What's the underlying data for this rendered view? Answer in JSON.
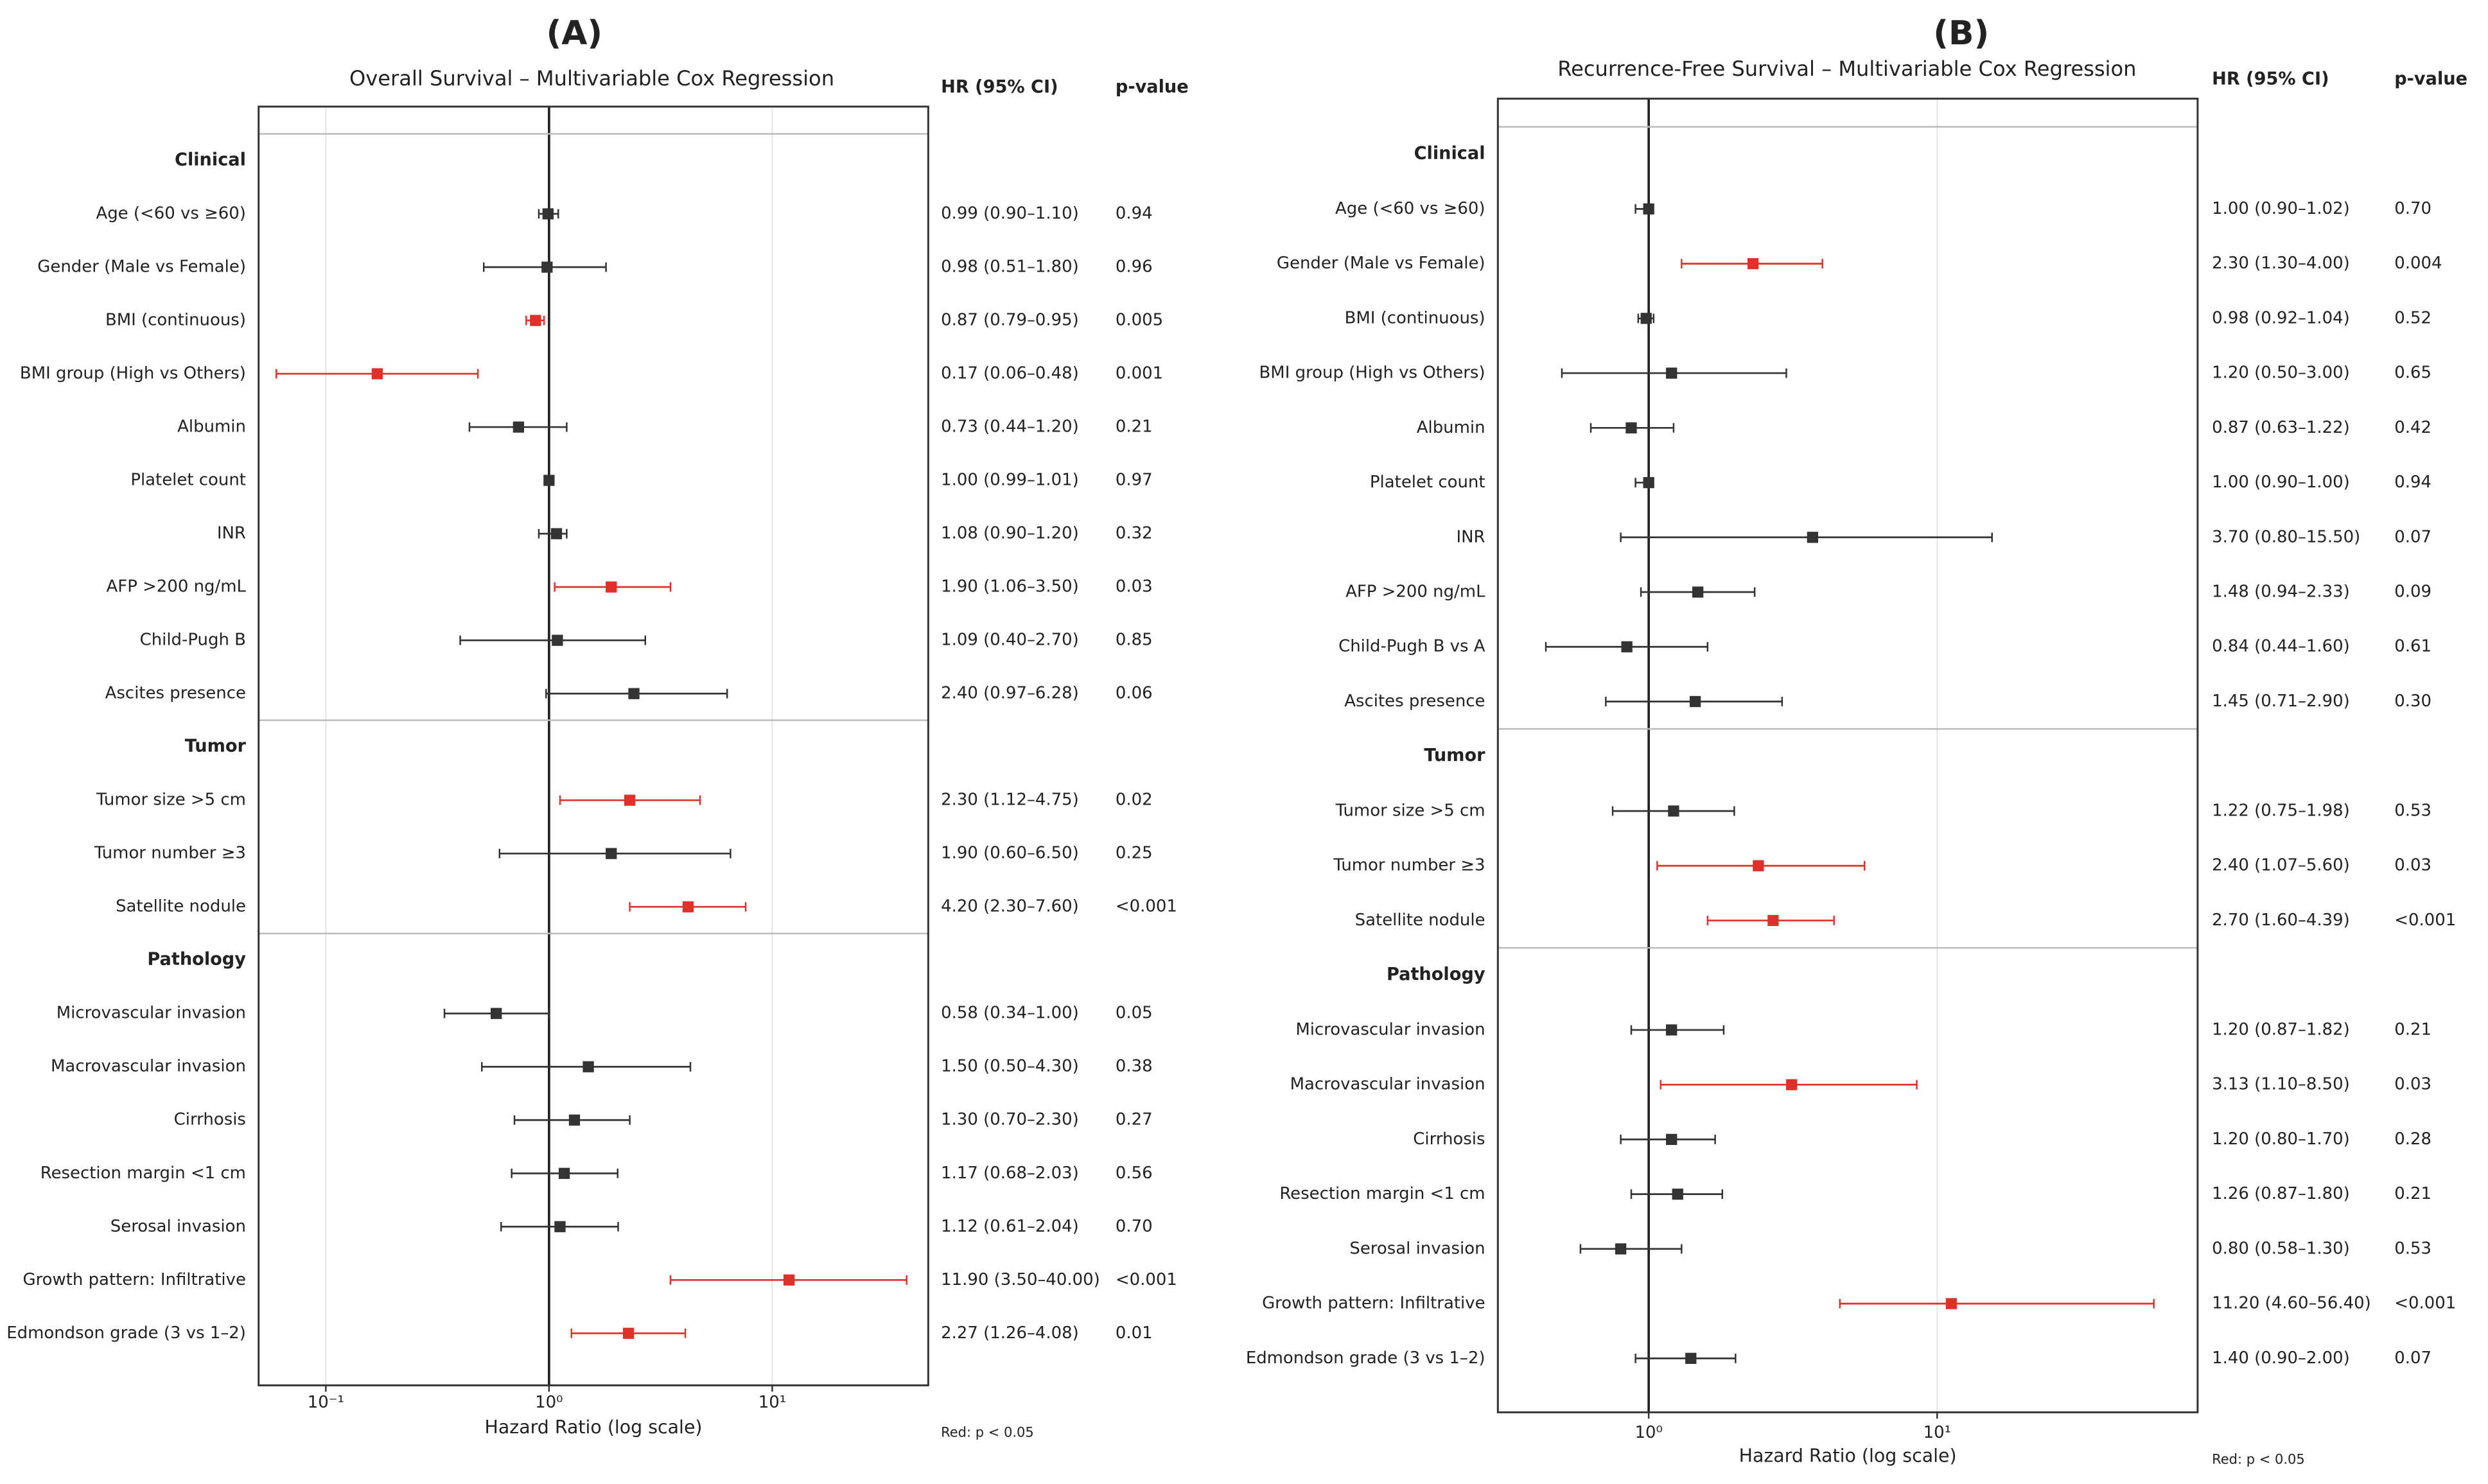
{
  "chart_data": [
    {
      "type": "forest",
      "panel": "(A)",
      "title": "Overall Survival – Multivariable Cox Regression",
      "ci_header": "HR (95% CI)",
      "p_header": "p-value",
      "xlabel": "Hazard Ratio (log scale)",
      "note": "Red: p < 0.05",
      "log_x": true,
      "xlim": [
        0.05,
        50
      ],
      "xticks": [
        {
          "value": 0.1,
          "label": "10⁻¹"
        },
        {
          "value": 1,
          "label": "10⁰"
        },
        {
          "value": 10,
          "label": "10¹"
        }
      ],
      "ref_line": 1,
      "grid": true,
      "color": "#333333",
      "highlight_color": "#e0302a",
      "sections": [
        {
          "label": "Clinical",
          "categories": [
            "Age (<60 vs ≥60)",
            "Gender (Male vs Female)",
            "BMI (continuous)",
            "BMI group (High vs Others)",
            "Albumin",
            "Platelet count",
            "INR",
            "AFP >200 ng/mL",
            "Child-Pugh B",
            "Ascites presence"
          ],
          "values": [
            0.99,
            0.98,
            0.87,
            0.17,
            0.73,
            1.0,
            1.08,
            1.9,
            1.09,
            2.4
          ],
          "lower": [
            0.9,
            0.51,
            0.79,
            0.06,
            0.44,
            0.99,
            0.9,
            1.06,
            0.4,
            0.97
          ],
          "upper": [
            1.1,
            1.8,
            0.95,
            0.48,
            1.2,
            1.01,
            1.2,
            3.5,
            2.7,
            6.28
          ],
          "ci_labels": [
            "0.99 (0.90–1.10)",
            "0.98 (0.51–1.80)",
            "0.87 (0.79–0.95)",
            "0.17 (0.06–0.48)",
            "0.73 (0.44–1.20)",
            "1.00 (0.99–1.01)",
            "1.08 (0.90–1.20)",
            "1.90 (1.06–3.50)",
            "1.09 (0.40–2.70)",
            "2.40 (0.97–6.28)"
          ],
          "p_labels": [
            "0.94",
            "0.96",
            "0.005",
            "0.001",
            "0.21",
            "0.97",
            "0.32",
            "0.03",
            "0.85",
            "0.06"
          ],
          "highlight": [
            false,
            false,
            true,
            true,
            false,
            false,
            false,
            true,
            false,
            false
          ]
        },
        {
          "label": "Tumor",
          "categories": [
            "Tumor size >5 cm",
            "Tumor number ≥3",
            "Satellite nodule"
          ],
          "values": [
            2.3,
            1.9,
            4.2
          ],
          "lower": [
            1.12,
            0.6,
            2.3
          ],
          "upper": [
            4.75,
            6.5,
            7.6
          ],
          "ci_labels": [
            "2.30 (1.12–4.75)",
            "1.90 (0.60–6.50)",
            "4.20 (2.30–7.60)"
          ],
          "p_labels": [
            "0.02",
            "0.25",
            "<0.001"
          ],
          "highlight": [
            true,
            false,
            true
          ]
        },
        {
          "label": "Pathology",
          "categories": [
            "Microvascular invasion",
            "Macrovascular invasion",
            "Cirrhosis",
            "Resection margin <1 cm",
            "Serosal invasion",
            "Growth pattern: Infiltrative",
            "Edmondson grade (3 vs 1–2)"
          ],
          "values": [
            0.58,
            1.5,
            1.3,
            1.17,
            1.12,
            11.9,
            2.27
          ],
          "lower": [
            0.34,
            0.5,
            0.7,
            0.68,
            0.61,
            3.5,
            1.26
          ],
          "upper": [
            1.0,
            4.3,
            2.3,
            2.03,
            2.04,
            40.0,
            4.08
          ],
          "ci_labels": [
            "0.58 (0.34–1.00)",
            "1.50 (0.50–4.30)",
            "1.30 (0.70–2.30)",
            "1.17 (0.68–2.03)",
            "1.12 (0.61–2.04)",
            "11.90 (3.50–40.00)",
            "2.27 (1.26–4.08)"
          ],
          "p_labels": [
            "0.05",
            "0.38",
            "0.27",
            "0.56",
            "0.70",
            "<0.001",
            "0.01"
          ],
          "highlight": [
            false,
            false,
            false,
            false,
            false,
            true,
            true
          ]
        }
      ]
    },
    {
      "type": "forest",
      "panel": "(B)",
      "title": "Recurrence-Free Survival – Multivariable Cox Regression",
      "ci_header": "HR (95% CI)",
      "p_header": "p-value",
      "xlabel": "Hazard Ratio (log scale)",
      "note": "Red: p < 0.05",
      "log_x": true,
      "xlim": [
        0.3,
        80
      ],
      "xticks": [
        {
          "value": 1,
          "label": "10⁰"
        },
        {
          "value": 10,
          "label": "10¹"
        }
      ],
      "ref_line": 1,
      "grid": true,
      "color": "#333333",
      "highlight_color": "#e0302a",
      "sections": [
        {
          "label": "Clinical",
          "categories": [
            "Age (<60 vs ≥60)",
            "Gender (Male vs Female)",
            "BMI (continuous)",
            "BMI group (High vs Others)",
            "Albumin",
            "Platelet count",
            "INR",
            "AFP >200 ng/mL",
            "Child-Pugh B vs A",
            "Ascites presence"
          ],
          "values": [
            1.0,
            2.3,
            0.98,
            1.2,
            0.87,
            1.0,
            3.7,
            1.48,
            0.84,
            1.45
          ],
          "lower": [
            0.9,
            1.3,
            0.92,
            0.5,
            0.63,
            0.9,
            0.8,
            0.94,
            0.44,
            0.71
          ],
          "upper": [
            1.02,
            4.0,
            1.04,
            3.0,
            1.22,
            1.0,
            15.5,
            2.33,
            1.6,
            2.9
          ],
          "ci_labels": [
            "1.00 (0.90–1.02)",
            "2.30 (1.30–4.00)",
            "0.98 (0.92–1.04)",
            "1.20 (0.50–3.00)",
            "0.87 (0.63–1.22)",
            "1.00 (0.90–1.00)",
            "3.70 (0.80–15.50)",
            "1.48 (0.94–2.33)",
            "0.84 (0.44–1.60)",
            "1.45 (0.71–2.90)"
          ],
          "p_labels": [
            "0.70",
            "0.004",
            "0.52",
            "0.65",
            "0.42",
            "0.94",
            "0.07",
            "0.09",
            "0.61",
            "0.30"
          ],
          "highlight": [
            false,
            true,
            false,
            false,
            false,
            false,
            false,
            false,
            false,
            false
          ]
        },
        {
          "label": "Tumor",
          "categories": [
            "Tumor size >5 cm",
            "Tumor number ≥3",
            "Satellite nodule"
          ],
          "values": [
            1.22,
            2.4,
            2.7
          ],
          "lower": [
            0.75,
            1.07,
            1.6
          ],
          "upper": [
            1.98,
            5.6,
            4.39
          ],
          "ci_labels": [
            "1.22 (0.75–1.98)",
            "2.40 (1.07–5.60)",
            "2.70 (1.60–4.39)"
          ],
          "p_labels": [
            "0.53",
            "0.03",
            "<0.001"
          ],
          "highlight": [
            false,
            true,
            true
          ]
        },
        {
          "label": "Pathology",
          "categories": [
            "Microvascular invasion",
            "Macrovascular invasion",
            "Cirrhosis",
            "Resection margin <1 cm",
            "Serosal invasion",
            "Growth pattern: Infiltrative",
            "Edmondson grade (3 vs 1–2)"
          ],
          "values": [
            1.2,
            3.13,
            1.2,
            1.26,
            0.8,
            11.2,
            1.4
          ],
          "lower": [
            0.87,
            1.1,
            0.8,
            0.87,
            0.58,
            4.6,
            0.9
          ],
          "upper": [
            1.82,
            8.5,
            1.7,
            1.8,
            1.3,
            56.4,
            2.0
          ],
          "ci_labels": [
            "1.20 (0.87–1.82)",
            "3.13 (1.10–8.50)",
            "1.20 (0.80–1.70)",
            "1.26 (0.87–1.80)",
            "0.80 (0.58–1.30)",
            "11.20 (4.60–56.40)",
            "1.40 (0.90–2.00)"
          ],
          "p_labels": [
            "0.21",
            "0.03",
            "0.28",
            "0.21",
            "0.53",
            "<0.001",
            "0.07"
          ],
          "highlight": [
            false,
            true,
            false,
            false,
            false,
            true,
            false
          ]
        }
      ]
    }
  ]
}
